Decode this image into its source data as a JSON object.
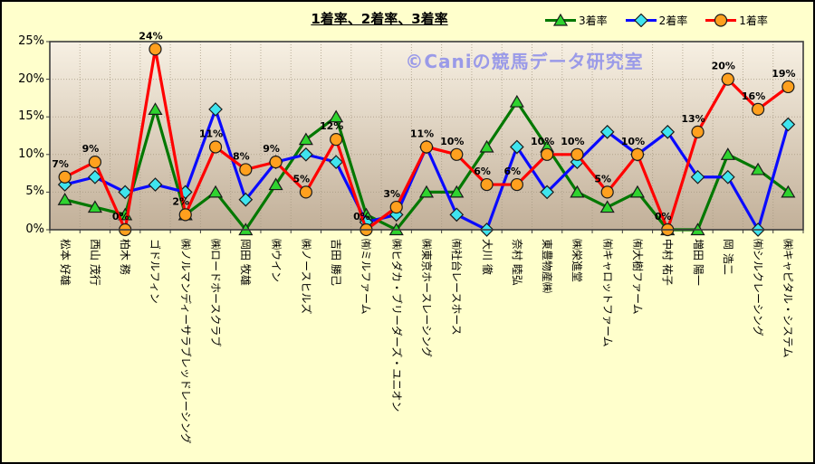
{
  "chart_data": {
    "type": "line",
    "title": "1着率、2着率、3着率",
    "watermark": "©Caniの競馬データ研究室",
    "xlabel": "",
    "ylabel": "",
    "ylim": [
      0,
      25
    ],
    "grid": true,
    "legend_position": "top-right",
    "y_ticks": [
      {
        "label": "0%",
        "value": 0
      },
      {
        "label": "5%",
        "value": 5
      },
      {
        "label": "10%",
        "value": 10
      },
      {
        "label": "15%",
        "value": 15
      },
      {
        "label": "20%",
        "value": 20
      },
      {
        "label": "25%",
        "value": 25
      }
    ],
    "categories": [
      "松本 好雄",
      "西山 茂行",
      "柏木 務",
      "ゴドルフィン",
      "㈱ノルマンディーサラブレッドレーシング",
      "㈱ロードホースクラブ",
      "岡田 牧雄",
      "㈱ウイン",
      "㈱ノースヒルズ",
      "吉田 勝己",
      "㈲ミルファーム",
      "㈱ヒダカ・ブリーダーズ・ユニオン",
      "㈱東京ホースレーシング",
      "㈲社台レースホース",
      "大川 徹",
      "奈村 睦弘",
      "東豊物産㈱",
      "㈱栄進堂",
      "㈲キャロットファーム",
      "㈲大樹ファーム",
      "中村 祐子",
      "増田 陽一",
      "岡 浩二",
      "㈲シルクレーシング",
      "㈱キャピタル・システム"
    ],
    "series": [
      {
        "name": "3着率",
        "marker": "triangle",
        "line_color": "#007800",
        "marker_fill": "#2FD32F",
        "values": [
          4,
          3,
          2,
          16,
          2,
          5,
          0,
          6,
          12,
          15,
          2,
          0,
          5,
          5,
          11,
          17,
          11,
          5,
          3,
          5,
          0,
          0,
          10,
          8,
          5
        ]
      },
      {
        "name": "2着率",
        "marker": "diamond",
        "line_color": "#0A0AFF",
        "marker_fill": "#3FE4EE",
        "values": [
          6,
          7,
          5,
          6,
          5,
          16,
          4,
          9,
          10,
          9,
          1,
          2,
          11,
          2,
          0,
          11,
          5,
          9,
          13,
          10,
          13,
          7,
          7,
          0,
          14
        ]
      },
      {
        "name": "1着率",
        "marker": "circle",
        "line_color": "#FF0000",
        "marker_fill": "#FFA01E",
        "values": [
          7,
          9,
          0,
          24,
          2,
          11,
          8,
          9,
          5,
          12,
          0,
          3,
          11,
          10,
          6,
          6,
          10,
          10,
          5,
          10,
          0,
          13,
          20,
          16,
          19
        ],
        "point_labels": [
          "7%",
          "9%",
          "0%",
          "24%",
          "2%",
          "11%",
          "8%",
          "9%",
          "5%",
          "12%",
          "0%",
          "3%",
          "11%",
          "10%",
          "6%",
          "6%",
          "10%",
          "10%",
          "5%",
          "10%",
          "0%",
          "13%",
          "20%",
          "16%",
          "19%"
        ]
      }
    ],
    "colors": {
      "background": "#FFFFCC",
      "plot_gradient_top": "#F7F0E3",
      "plot_gradient_bottom": "#C2B099",
      "gridline": "#A59880",
      "plot_border": "#3C3C3C"
    }
  }
}
